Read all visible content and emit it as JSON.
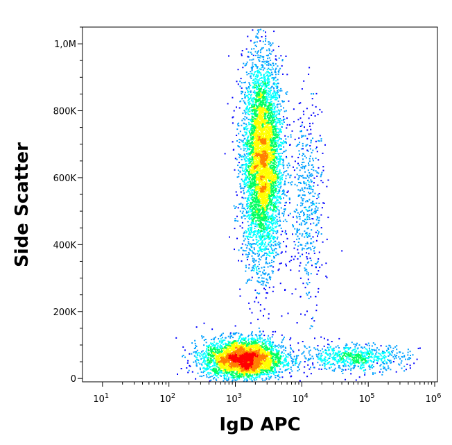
{
  "chart_data": {
    "type": "scatter",
    "title": "",
    "xlabel": "IgD APC",
    "ylabel": "Side Scatter",
    "x_scale": "log",
    "xlim": [
      5,
      1100000
    ],
    "ylim": [
      -10000,
      1050000
    ],
    "grid": false,
    "legend": "none",
    "x_ticks": [
      {
        "value": 10,
        "base": "10",
        "exp": "1"
      },
      {
        "value": 100,
        "base": "10",
        "exp": "2"
      },
      {
        "value": 1000,
        "base": "10",
        "exp": "3"
      },
      {
        "value": 10000,
        "base": "10",
        "exp": "4"
      },
      {
        "value": 100000,
        "base": "10",
        "exp": "5"
      },
      {
        "value": 1000000,
        "base": "10",
        "exp": "6"
      }
    ],
    "y_ticks": [
      {
        "value": 0,
        "label": "0"
      },
      {
        "value": 200000,
        "label": "200K"
      },
      {
        "value": 400000,
        "label": "400K"
      },
      {
        "value": 600000,
        "label": "600K"
      },
      {
        "value": 800000,
        "label": "800K"
      },
      {
        "value": 1000000,
        "label": "1,0M"
      }
    ],
    "populations": [
      {
        "center_x": 2500,
        "center_y": 650000,
        "spread_logx": 0.15,
        "spread_y": 150000,
        "events": 5000,
        "peak_density": "high"
      },
      {
        "center_x": 1300,
        "center_y": 60000,
        "spread_logx": 0.3,
        "spread_y": 30000,
        "events": 3500,
        "peak_density": "high"
      },
      {
        "center_x": 12000,
        "center_y": 520000,
        "spread_logx": 0.12,
        "spread_y": 150000,
        "events": 500,
        "peak_density": "low"
      },
      {
        "center_x": 60000,
        "center_y": 65000,
        "spread_logx": 0.4,
        "spread_y": 20000,
        "events": 700,
        "peak_density": "low"
      }
    ],
    "colormap": [
      "#0000ff",
      "#00a0ff",
      "#00ffff",
      "#00ff60",
      "#ffff00",
      "#ff8000",
      "#ff0000"
    ]
  }
}
